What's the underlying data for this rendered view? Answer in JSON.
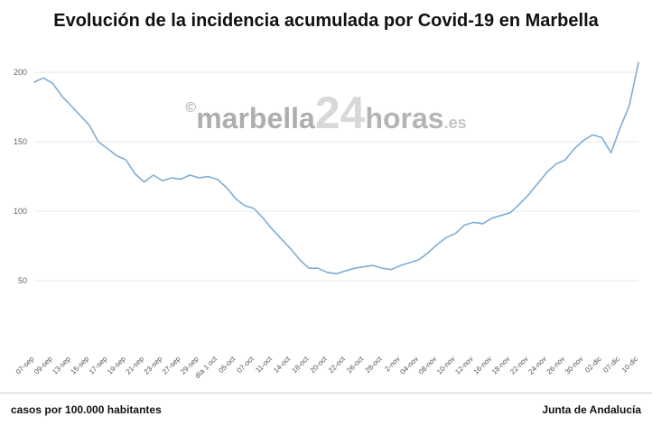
{
  "title": "Evolución de la incidencia acumulada por Covid-19 en Marbella",
  "watermark": {
    "copyright": "©",
    "part1": "marbella",
    "part2": "24",
    "part3": "horas",
    "part4": ".es"
  },
  "footer": {
    "left": "casos por 100.000 habitantes",
    "right": "Junta de Andalucía"
  },
  "chart_data": {
    "type": "line",
    "title": "Evolución de la incidencia acumulada por Covid-19 en Marbella",
    "ylabel": "casos por 100.000 habitantes",
    "source": "Junta de Andalucía",
    "ylim": [
      0,
      215
    ],
    "yticks": [
      50,
      100,
      150,
      200
    ],
    "grid": "horizontal",
    "legend": "none",
    "line_color": "#7fadd4",
    "grid_color": "#e8e8e8",
    "points_per_tick": 2,
    "x_tick_labels": [
      "07-sep",
      "09-sep",
      "13-sep",
      "15-sep",
      "17-sep",
      "19-sep",
      "21-sep",
      "23-sep",
      "27-sep",
      "29-sep",
      "día 1 oct",
      "05-oct",
      "07-oct",
      "11-oct",
      "14-oct",
      "18-oct",
      "20-oct",
      "22-oct",
      "26-oct",
      "28-oct",
      "2-nov",
      "04-nov",
      "08-nov",
      "10-nov",
      "12-nov",
      "16-nov",
      "18-nov",
      "22-nov",
      "24-nov",
      "26-nov",
      "30-nov",
      "02-dic",
      "07-dic",
      "10-dic"
    ],
    "values": [
      193,
      196,
      192,
      183,
      176,
      169,
      162,
      150,
      145,
      140,
      137,
      127,
      121,
      126,
      122,
      124,
      123,
      126,
      124,
      125,
      123,
      117,
      109,
      104,
      102,
      95,
      87,
      80,
      73,
      65,
      59,
      59,
      56,
      55,
      57,
      59,
      60,
      61,
      59,
      58,
      61,
      63,
      65,
      70,
      76,
      81,
      84,
      90,
      92,
      91,
      95,
      97,
      99,
      105,
      112,
      120,
      128,
      134,
      137,
      145,
      151,
      155,
      153,
      142,
      160,
      176,
      207
    ]
  }
}
